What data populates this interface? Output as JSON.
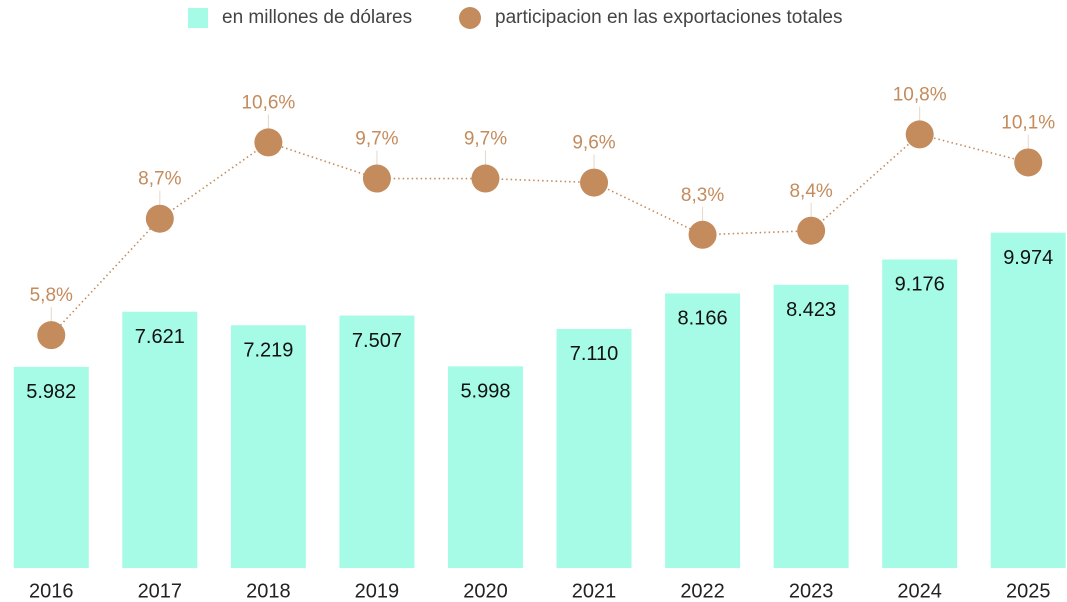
{
  "chart_data": {
    "type": "bar",
    "categories": [
      "2016",
      "2017",
      "2018",
      "2019",
      "2020",
      "2021",
      "2022",
      "2023",
      "2024",
      "2025"
    ],
    "series": [
      {
        "name": "en millones de dólares",
        "type": "bar",
        "color": "#a6fbe7",
        "values": [
          5982,
          7621,
          7219,
          7507,
          5998,
          7110,
          8166,
          8423,
          9176,
          9974
        ],
        "value_labels": [
          "5.982",
          "7.621",
          "7.219",
          "7.507",
          "5.998",
          "7.110",
          "8.166",
          "8.423",
          "9.176",
          "9.974"
        ]
      },
      {
        "name": "participacion en las exportaciones totales",
        "type": "line",
        "axis": "y2",
        "color": "#c48b5c",
        "values": [
          5.8,
          8.7,
          10.6,
          9.7,
          9.7,
          9.6,
          8.3,
          8.4,
          10.8,
          10.1
        ],
        "value_labels": [
          "5,8%",
          "8,7%",
          "10,6%",
          "9,7%",
          "9,7%",
          "9,6%",
          "8,3%",
          "8,4%",
          "10,8%",
          "10,1%"
        ]
      }
    ],
    "ylim": [
      0,
      16000
    ],
    "y2lim": [
      0,
      13.4
    ],
    "legend": "top"
  }
}
